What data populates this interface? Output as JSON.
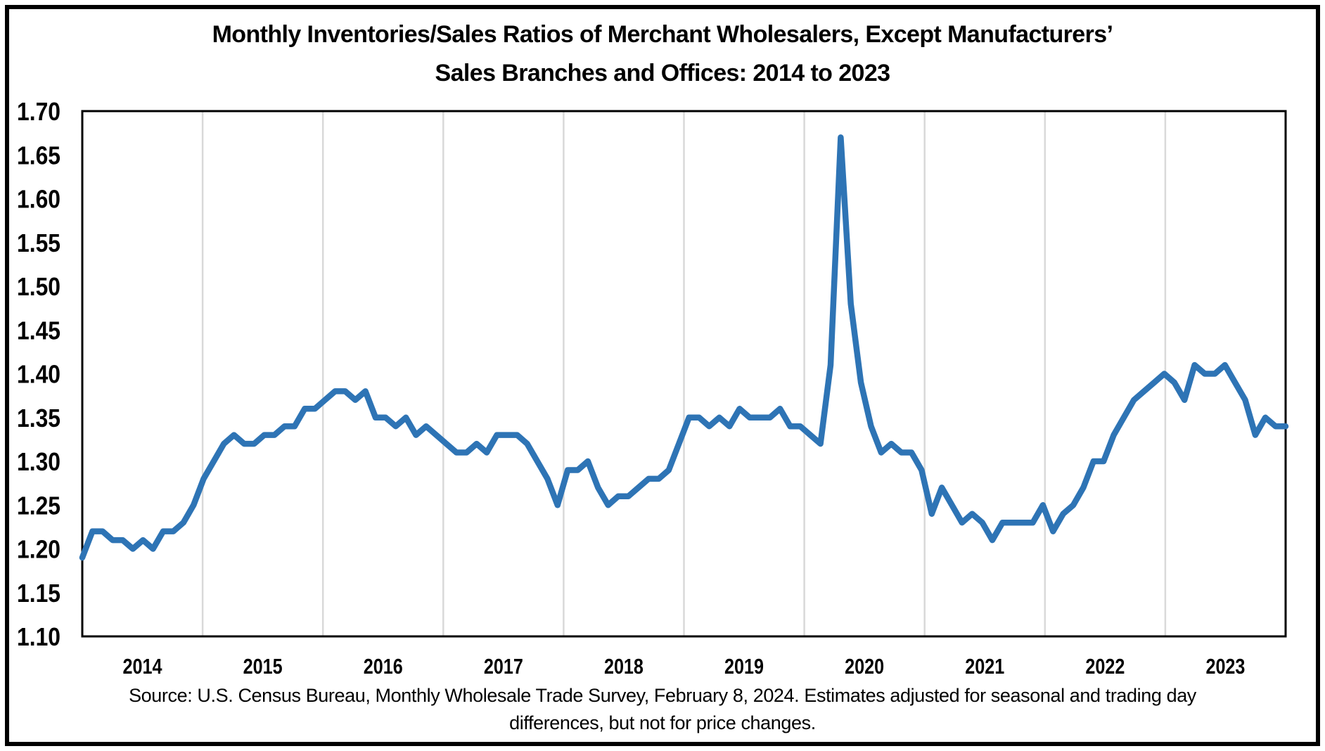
{
  "title": {
    "line1": "Monthly Inventories/Sales Ratios of Merchant Wholesalers, Except Manufacturers’",
    "line2": "Sales Branches and Offices: 2014 to 2023"
  },
  "source": {
    "line1": "Source: U.S. Census Bureau, Monthly Wholesale Trade Survey, February 8, 2024. Estimates adjusted for seasonal and trading day",
    "line2": "differences, but not for price changes."
  },
  "chart_data": {
    "type": "line",
    "title": "Monthly Inventories/Sales Ratios of Merchant Wholesalers, Except Manufacturers’ Sales Branches and Offices: 2014 to 2023",
    "xlabel": "",
    "ylabel": "",
    "ylim": [
      1.1,
      1.7
    ],
    "y_tick_step": 0.05,
    "y_tick_labels": [
      "1.10",
      "1.15",
      "1.20",
      "1.25",
      "1.30",
      "1.35",
      "1.40",
      "1.45",
      "1.50",
      "1.55",
      "1.60",
      "1.65",
      "1.70"
    ],
    "x_tick_labels": [
      "2014",
      "2015",
      "2016",
      "2017",
      "2018",
      "2019",
      "2020",
      "2021",
      "2022",
      "2023"
    ],
    "grid": "vertical-year-gridlines-only",
    "legend": "none",
    "line_color": "#2E74B5",
    "gridline_color": "#D9D9D9",
    "frame_color": "#000000",
    "peak_point": {
      "month": "2020-04",
      "value": 1.67
    },
    "series": [
      {
        "name": "Inventories/Sales ratio of merchant wholesalers, except manufacturers’ sales branches and offices (monthly, seasonally adjusted)",
        "start_month": "2014-01",
        "end_month": "2023-12",
        "values_by_year": {
          "2014": [
            1.19,
            1.22,
            1.22,
            1.21,
            1.21,
            1.2,
            1.21,
            1.2,
            1.22,
            1.22,
            1.23,
            1.25
          ],
          "2015": [
            1.28,
            1.3,
            1.32,
            1.33,
            1.32,
            1.32,
            1.33,
            1.33,
            1.34,
            1.34,
            1.36,
            1.36
          ],
          "2016": [
            1.37,
            1.38,
            1.38,
            1.37,
            1.38,
            1.35,
            1.35,
            1.34,
            1.35,
            1.33,
            1.34,
            1.33
          ],
          "2017": [
            1.32,
            1.31,
            1.31,
            1.32,
            1.31,
            1.33,
            1.33,
            1.33,
            1.32,
            1.3,
            1.28,
            1.25
          ],
          "2018": [
            1.29,
            1.29,
            1.3,
            1.27,
            1.25,
            1.26,
            1.26,
            1.27,
            1.28,
            1.28,
            1.29,
            1.32
          ],
          "2019": [
            1.35,
            1.35,
            1.34,
            1.35,
            1.34,
            1.36,
            1.35,
            1.35,
            1.35,
            1.36,
            1.34,
            1.34
          ],
          "2020": [
            1.33,
            1.32,
            1.41,
            1.67,
            1.48,
            1.39,
            1.34,
            1.31,
            1.32,
            1.31,
            1.31,
            1.29
          ],
          "2021": [
            1.24,
            1.27,
            1.25,
            1.23,
            1.24,
            1.23,
            1.21,
            1.23,
            1.23,
            1.23,
            1.23,
            1.25
          ],
          "2022": [
            1.22,
            1.24,
            1.25,
            1.27,
            1.3,
            1.3,
            1.33,
            1.35,
            1.37,
            1.38,
            1.39,
            1.4
          ],
          "2023": [
            1.39,
            1.37,
            1.41,
            1.4,
            1.4,
            1.41,
            1.39,
            1.37,
            1.33,
            1.35,
            1.34,
            1.34
          ]
        }
      }
    ]
  }
}
